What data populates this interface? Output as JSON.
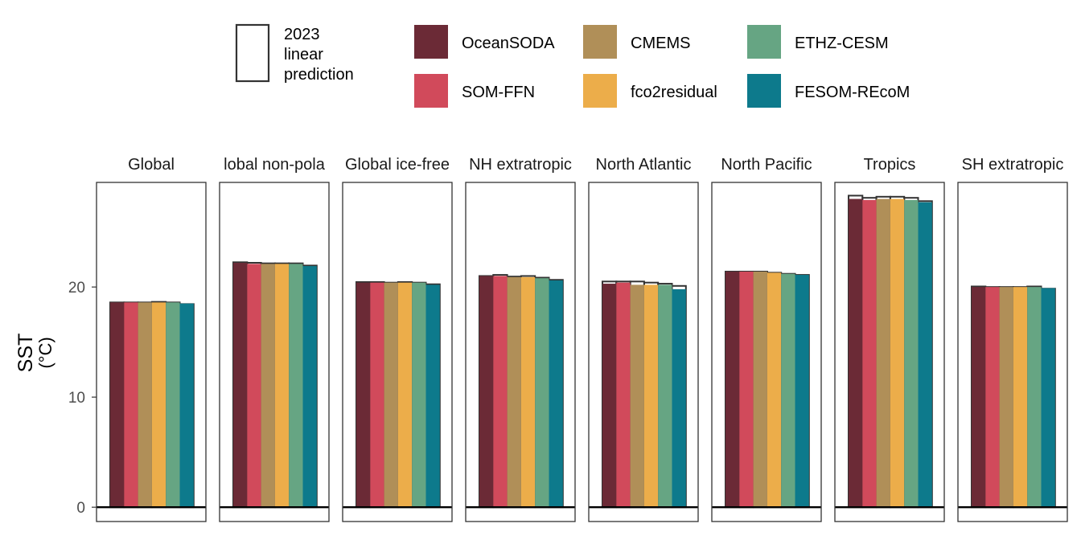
{
  "chart_data": {
    "type": "bar",
    "ylabel_line1": "SST",
    "ylabel_line2": "(°C)",
    "ylim": [
      -1.3,
      29.5
    ],
    "yticks": [
      0,
      10,
      20
    ],
    "grid": false,
    "legend_position": "top",
    "legend": {
      "prediction_label_lines": [
        "2023",
        "linear",
        "prediction"
      ],
      "items": [
        {
          "name": "OceanSODA",
          "color": "#6b2a36"
        },
        {
          "name": "CMEMS",
          "color": "#b08f58"
        },
        {
          "name": "ETHZ-CESM",
          "color": "#66a583"
        },
        {
          "name": "SOM-FFN",
          "color": "#d14a5b"
        },
        {
          "name": "fco2residual",
          "color": "#ecad4a"
        },
        {
          "name": "FESOM-REcoM",
          "color": "#0d7a8c"
        }
      ]
    },
    "series_order": [
      "OceanSODA",
      "SOM-FFN",
      "CMEMS",
      "fco2residual",
      "ETHZ-CESM",
      "FESOM-REcoM"
    ],
    "panels": [
      {
        "label": "Global",
        "values": [
          18.6,
          18.6,
          18.6,
          18.6,
          18.6,
          18.5
        ],
        "predictions": [
          18.6,
          18.6,
          18.6,
          18.65,
          18.6,
          18.45
        ]
      },
      {
        "label": "lobal non-pola",
        "values": [
          22.2,
          22.1,
          22.1,
          22.1,
          22.1,
          21.9
        ],
        "predictions": [
          22.25,
          22.2,
          22.15,
          22.15,
          22.15,
          21.95
        ]
      },
      {
        "label": "Global ice-free",
        "values": [
          20.4,
          20.4,
          20.4,
          20.4,
          20.4,
          20.2
        ],
        "predictions": [
          20.45,
          20.45,
          20.4,
          20.45,
          20.4,
          20.25
        ]
      },
      {
        "label": "NH extratropic",
        "values": [
          21.0,
          21.0,
          20.9,
          20.9,
          20.8,
          20.6
        ],
        "predictions": [
          21.0,
          21.1,
          20.95,
          21.0,
          20.85,
          20.65
        ]
      },
      {
        "label": "North Atlantic",
        "values": [
          20.3,
          20.4,
          20.2,
          20.2,
          20.2,
          19.8
        ],
        "predictions": [
          20.5,
          20.5,
          20.5,
          20.4,
          20.3,
          20.1
        ]
      },
      {
        "label": "North Pacific",
        "values": [
          21.4,
          21.4,
          21.4,
          21.3,
          21.2,
          21.1
        ],
        "predictions": [
          21.4,
          21.4,
          21.4,
          21.3,
          21.2,
          21.1
        ]
      },
      {
        "label": "Tropics",
        "values": [
          28.0,
          27.9,
          28.0,
          28.0,
          27.9,
          27.7
        ],
        "predictions": [
          28.3,
          28.1,
          28.2,
          28.2,
          28.1,
          27.8
        ]
      },
      {
        "label": "SH extratropic",
        "values": [
          20.0,
          20.0,
          20.0,
          20.0,
          20.0,
          19.9
        ],
        "predictions": [
          20.05,
          20.0,
          20.0,
          20.0,
          20.05,
          19.85
        ]
      }
    ]
  }
}
